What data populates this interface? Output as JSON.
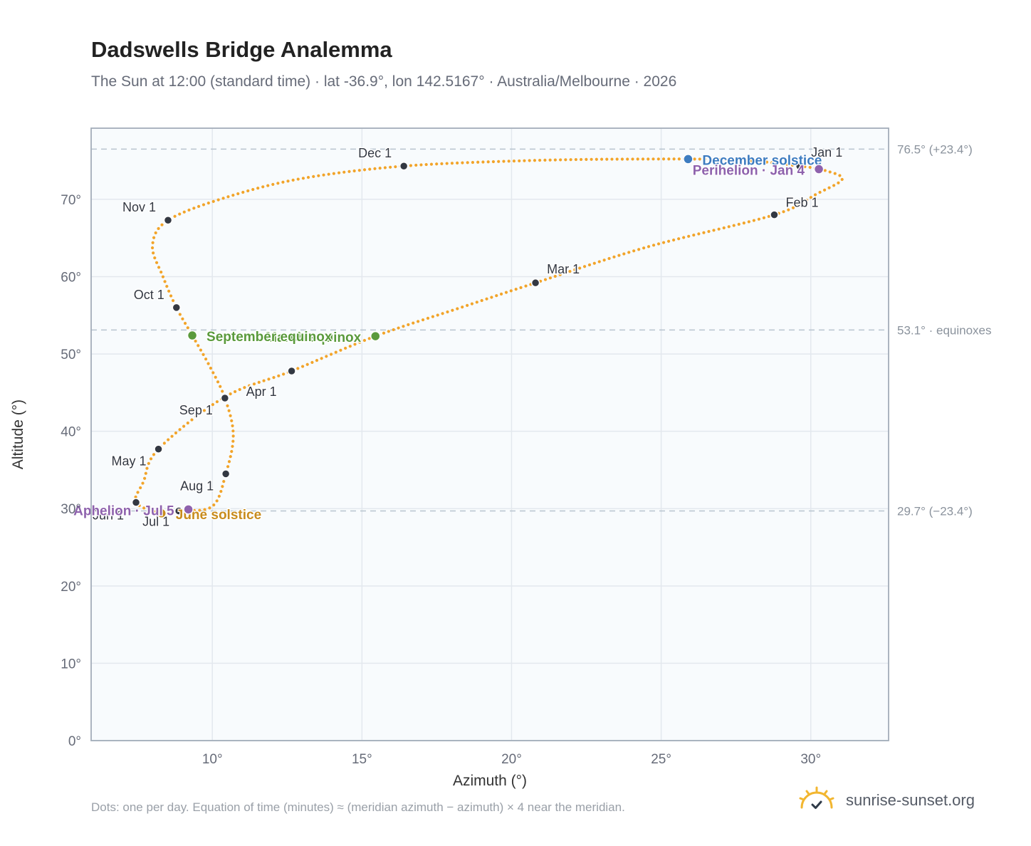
{
  "title": "Dadswells Bridge Analemma",
  "subtitle": "The Sun at 12:00 (standard time) · lat -36.9°, lon 142.5167° · Australia/Melbourne · 2026",
  "footnote": "Dots: one per day. Equation of time (minutes) ≈ (meridian azimuth − azimuth) × 4 near the meridian.",
  "brand": {
    "name": "sunrise-sunset.org",
    "icon": "sun-logo-icon"
  },
  "colors": {
    "curve": "#f2a42a",
    "month_marker": "#333842",
    "equinox": "#5a9a3c",
    "december_solstice": "#3d7cc0",
    "june_solstice": "#c88c1e",
    "apsis": "#8e62ad",
    "plot_bg": "#f8fbfd",
    "grid": "#e3e8ee",
    "ref_line": "#b8c4cf"
  },
  "chart_data": {
    "type": "scatter",
    "xlabel": "Azimuth (°)",
    "ylabel": "Altitude (°)",
    "xlim": [
      5.95,
      32.6
    ],
    "ylim": [
      0,
      79.2
    ],
    "xticks": [
      10,
      15,
      20,
      25,
      30
    ],
    "yticks": [
      0,
      10,
      20,
      30,
      40,
      50,
      60,
      70
    ],
    "x_tick_labels": [
      "10°",
      "15°",
      "20°",
      "25°",
      "30°"
    ],
    "y_tick_labels": [
      "0°",
      "10°",
      "20°",
      "30°",
      "40°",
      "50°",
      "60°",
      "70°"
    ],
    "grid": true,
    "reference_lines": [
      {
        "y": 76.5,
        "label": "76.5° (+23.4°)"
      },
      {
        "y": 53.1,
        "label": "53.1° · equinoxes"
      },
      {
        "y": 29.7,
        "label": "29.7° (−23.4°)"
      }
    ],
    "series": [
      {
        "points": [
          [
            29.63,
            74.3
          ],
          [
            30.5,
            73.7
          ],
          [
            31.05,
            72.6
          ],
          [
            30.2,
            70.7
          ],
          [
            28.78,
            68.0
          ],
          [
            24.5,
            63.8
          ],
          [
            20.8,
            59.2
          ],
          [
            18.3,
            56.0
          ],
          [
            15.45,
            52.3
          ],
          [
            12.65,
            47.8
          ],
          [
            10.4,
            44.4
          ],
          [
            8.2,
            37.7
          ],
          [
            7.7,
            33.5
          ],
          [
            7.45,
            30.8
          ],
          [
            8.3,
            29.4
          ],
          [
            8.88,
            29.7
          ],
          [
            10.0,
            30.3
          ],
          [
            10.45,
            34.5
          ],
          [
            10.7,
            39.5
          ],
          [
            10.42,
            44.3
          ],
          [
            9.9,
            48.5
          ],
          [
            9.33,
            52.4
          ],
          [
            8.8,
            56.0
          ],
          [
            8.35,
            60.0
          ],
          [
            8.0,
            64.0
          ],
          [
            8.52,
            67.3
          ],
          [
            10.5,
            70.3
          ],
          [
            13.0,
            72.7
          ],
          [
            16.4,
            74.3
          ],
          [
            20.5,
            75.0
          ],
          [
            24.0,
            75.2
          ],
          [
            27.5,
            75.1
          ],
          [
            29.63,
            74.3
          ]
        ]
      }
    ],
    "month_markers": [
      {
        "label": "Jan 1",
        "x": 29.63,
        "y": 74.3
      },
      {
        "label": "Feb 1",
        "x": 28.78,
        "y": 68.0
      },
      {
        "label": "Mar 1",
        "x": 20.8,
        "y": 59.2
      },
      {
        "label": "Apr 1",
        "x": 12.65,
        "y": 47.8
      },
      {
        "label": "May 1",
        "x": 8.2,
        "y": 37.7
      },
      {
        "label": "Jun 1",
        "x": 7.45,
        "y": 30.8
      },
      {
        "label": "Jul 1",
        "x": 8.88,
        "y": 29.7
      },
      {
        "label": "Aug 1",
        "x": 10.45,
        "y": 34.5
      },
      {
        "label": "Sep 1",
        "x": 10.42,
        "y": 44.3
      },
      {
        "label": "Oct 1",
        "x": 8.8,
        "y": 56.0
      },
      {
        "label": "Nov 1",
        "x": 8.52,
        "y": 67.3
      },
      {
        "label": "Dec 1",
        "x": 16.4,
        "y": 74.3
      }
    ],
    "events": [
      {
        "label": "December solstice",
        "x": 25.9,
        "y": 75.2,
        "color_key": "december_solstice"
      },
      {
        "label": "Perihelion · Jan 4",
        "x": 30.27,
        "y": 73.9,
        "color_key": "apsis"
      },
      {
        "label": "March equinox",
        "x": 15.45,
        "y": 52.3,
        "color_key": "equinox"
      },
      {
        "label": "September equinox",
        "x": 9.33,
        "y": 52.4,
        "color_key": "equinox"
      },
      {
        "label": "June solstice",
        "x": 8.3,
        "y": 29.4,
        "color_key": "june_solstice"
      },
      {
        "label": "Aphelion · Jul 5",
        "x": 9.2,
        "y": 29.9,
        "color_key": "apsis"
      }
    ]
  }
}
